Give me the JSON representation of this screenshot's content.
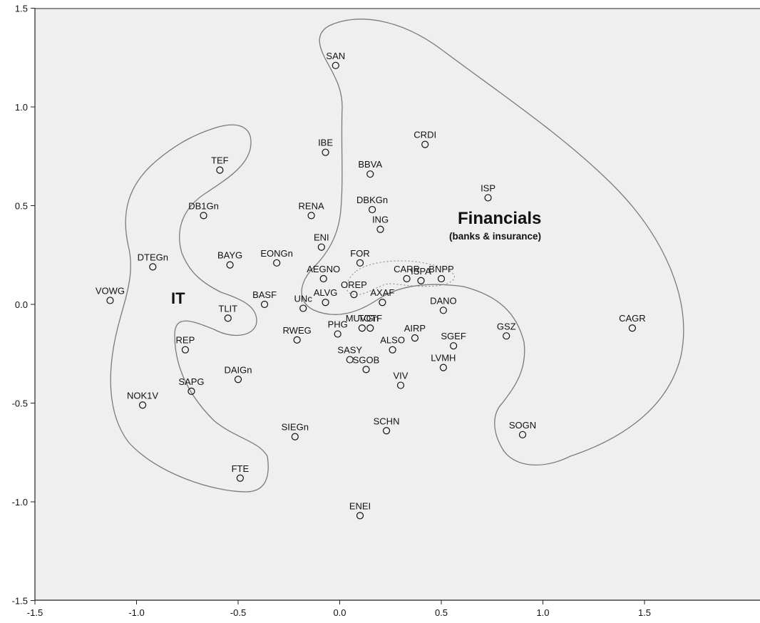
{
  "chart_data": {
    "type": "scatter",
    "title": "",
    "xlabel": "",
    "ylabel": "",
    "xlim": [
      -1.5,
      2.0
    ],
    "ylim": [
      -1.5,
      1.5
    ],
    "x_ticks": [
      "-1.5",
      "-1.0",
      "-0.5",
      "0.0",
      "0.5",
      "1.0",
      "1.5"
    ],
    "y_ticks": [
      "1.5",
      "1.0",
      "0.5",
      "0.0",
      "-0.5",
      "-1.0",
      "-1.5"
    ],
    "grid": false,
    "colors": {
      "plot_background": "#efefef",
      "marker": "#111111",
      "outline": "#777777"
    },
    "points": [
      {
        "label": "SAN",
        "x": -0.02,
        "y": 1.21
      },
      {
        "label": "CRDI",
        "x": 0.42,
        "y": 0.81
      },
      {
        "label": "IBE",
        "x": -0.07,
        "y": 0.77
      },
      {
        "label": "TEF",
        "x": -0.59,
        "y": 0.68
      },
      {
        "label": "BBVA",
        "x": 0.15,
        "y": 0.66
      },
      {
        "label": "ISP",
        "x": 0.73,
        "y": 0.54
      },
      {
        "label": "DBKGn",
        "x": 0.16,
        "y": 0.48
      },
      {
        "label": "DB1Gn",
        "x": -0.67,
        "y": 0.45
      },
      {
        "label": "RENA",
        "x": -0.14,
        "y": 0.45
      },
      {
        "label": "ING",
        "x": 0.2,
        "y": 0.38
      },
      {
        "label": "ENI",
        "x": -0.09,
        "y": 0.29
      },
      {
        "label": "EONGn",
        "x": -0.31,
        "y": 0.21
      },
      {
        "label": "FOR",
        "x": 0.1,
        "y": 0.21
      },
      {
        "label": "BAYG",
        "x": -0.54,
        "y": 0.2
      },
      {
        "label": "DTEGn",
        "x": -0.92,
        "y": 0.19
      },
      {
        "label": "AEGNO",
        "x": -0.08,
        "y": 0.13
      },
      {
        "label": "CARR",
        "x": 0.33,
        "y": 0.13
      },
      {
        "label": "ISPA",
        "x": 0.4,
        "y": 0.12
      },
      {
        "label": "BNPP",
        "x": 0.5,
        "y": 0.13
      },
      {
        "label": "OREP",
        "x": 0.07,
        "y": 0.05
      },
      {
        "label": "ALVG",
        "x": -0.07,
        "y": 0.01
      },
      {
        "label": "AXAF",
        "x": 0.21,
        "y": 0.01
      },
      {
        "label": "VOWG",
        "x": -1.13,
        "y": 0.02
      },
      {
        "label": "BASF",
        "x": -0.37,
        "y": 0.0
      },
      {
        "label": "UNc",
        "x": -0.18,
        "y": -0.02
      },
      {
        "label": "DANO",
        "x": 0.51,
        "y": -0.03
      },
      {
        "label": "TLIT",
        "x": -0.55,
        "y": -0.07
      },
      {
        "label": "MUVGn",
        "x": 0.11,
        "y": -0.12
      },
      {
        "label": "TOTF",
        "x": 0.15,
        "y": -0.12
      },
      {
        "label": "CAGR",
        "x": 1.44,
        "y": -0.12
      },
      {
        "label": "PHG",
        "x": -0.01,
        "y": -0.15
      },
      {
        "label": "GSZ",
        "x": 0.82,
        "y": -0.16
      },
      {
        "label": "AIRP",
        "x": 0.37,
        "y": -0.17
      },
      {
        "label": "RWEG",
        "x": -0.21,
        "y": -0.18
      },
      {
        "label": "SGEF",
        "x": 0.56,
        "y": -0.21
      },
      {
        "label": "ALSO",
        "x": 0.26,
        "y": -0.23
      },
      {
        "label": "REP",
        "x": -0.76,
        "y": -0.23
      },
      {
        "label": "SASY",
        "x": 0.05,
        "y": -0.28
      },
      {
        "label": "LVMH",
        "x": 0.51,
        "y": -0.32
      },
      {
        "label": "SGOB",
        "x": 0.13,
        "y": -0.33
      },
      {
        "label": "DAIGn",
        "x": -0.5,
        "y": -0.38
      },
      {
        "label": "VIV",
        "x": 0.3,
        "y": -0.41
      },
      {
        "label": "SAPG",
        "x": -0.73,
        "y": -0.44
      },
      {
        "label": "NOK1V",
        "x": -0.97,
        "y": -0.51
      },
      {
        "label": "SCHN",
        "x": 0.23,
        "y": -0.64
      },
      {
        "label": "SOGN",
        "x": 0.9,
        "y": -0.66
      },
      {
        "label": "SIEGn",
        "x": -0.22,
        "y": -0.67
      },
      {
        "label": "FTE",
        "x": -0.49,
        "y": -0.88
      },
      {
        "label": "ENEI",
        "x": 0.1,
        "y": -1.07
      }
    ],
    "annotations": [
      {
        "text": "Financials",
        "emphasis": "large-bold"
      },
      {
        "text": "(banks & insurance)",
        "emphasis": "small-bold"
      },
      {
        "text": "IT",
        "emphasis": "large-bold"
      }
    ],
    "regions": [
      "Financials",
      "IT",
      "inner-dotted-cluster"
    ]
  }
}
